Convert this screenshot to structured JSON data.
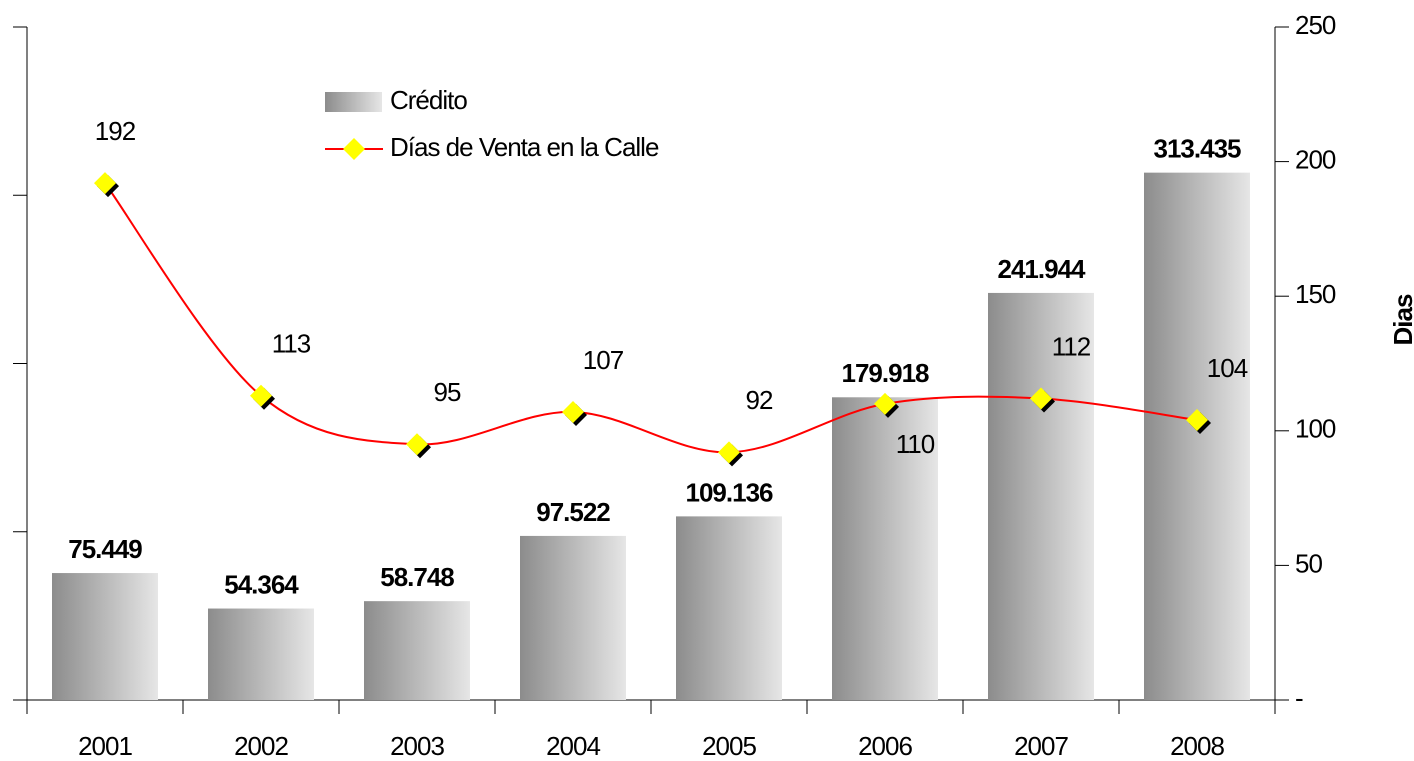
{
  "chart_data": {
    "type": "bar_line",
    "categories": [
      "2001",
      "2002",
      "2003",
      "2004",
      "2005",
      "2006",
      "2007",
      "2008"
    ],
    "ylim": [
      0,
      400000
    ],
    "yticks": [
      0,
      100000,
      200000,
      300000,
      400000
    ],
    "y2lim": [
      0,
      250
    ],
    "y2ticks": [
      {
        "value": 0,
        "label": "-"
      },
      50,
      100,
      150,
      200,
      250
    ],
    "y2label": "Dias",
    "series": [
      {
        "name": "Crédito",
        "type": "bar",
        "color": "#a6a6a6",
        "values": [
          75449,
          54364,
          58748,
          97522,
          109136,
          179918,
          241944,
          313435
        ],
        "value_labels": [
          "75.449",
          "54.364",
          "58.748",
          "97.522",
          "109.136",
          "179.918",
          "241.944",
          "313.435"
        ]
      },
      {
        "name": "Días de Venta en la Calle",
        "type": "line",
        "axis": "y2",
        "color": "#ff0000",
        "marker_color": "#ffff00",
        "values": [
          192,
          113,
          95,
          107,
          92,
          110,
          112,
          104
        ]
      }
    ]
  }
}
